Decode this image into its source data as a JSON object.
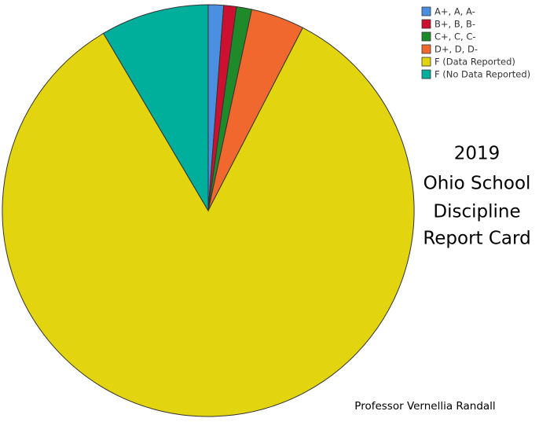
{
  "chart_data": {
    "type": "pie",
    "title_lines": [
      "2019",
      "Ohio School",
      "Discipline",
      "Report Card"
    ],
    "annotation": "Professor Vernellia Randall",
    "categories": [
      "A+, A, A-",
      "B+, B, B-",
      "C+, C, C-",
      "D+, D, D-",
      "F (Data Reported)",
      "F (No Data Reported)"
    ],
    "values": [
      1.2,
      1.0,
      1.2,
      4.2,
      83.9,
      8.5
    ],
    "colors": [
      "#4a8fe0",
      "#cc1030",
      "#1f8a2a",
      "#f0682e",
      "#e2d40e",
      "#00ae9c"
    ],
    "legend": "top-right"
  }
}
